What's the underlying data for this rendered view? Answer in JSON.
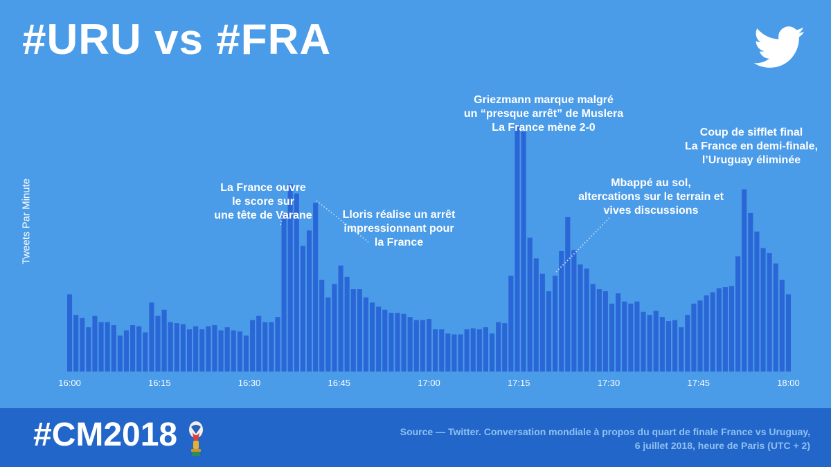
{
  "header": {
    "title": "#URU vs #FRA",
    "logo_icon": "twitter-bird-icon"
  },
  "footer": {
    "hashtag": "#CM2018",
    "emblem_icon": "world-cup-trophy-icon",
    "source_line1": "Source — Twitter. Conversation mondiale à propos du quart de finale France vs Uruguay,",
    "source_line2": "6 juillet 2018, heure de Paris (UTC + 2)"
  },
  "colors": {
    "background": "#4a9be8",
    "bars": "#2b66d6",
    "footer": "#2366c9",
    "text": "#ffffff",
    "source_text": "#8ec1f2"
  },
  "annotations": [
    {
      "id": "varane",
      "lines": [
        "La France ouvre",
        "le score sur",
        "une tête de Varane"
      ]
    },
    {
      "id": "lloris",
      "lines": [
        "Lloris réalise un arrêt",
        "impressionnant pour",
        "la France"
      ]
    },
    {
      "id": "griezmann",
      "lines": [
        "Griezmann marque malgré",
        "un “presque arrêt” de Muslera",
        "La France mène 2-0"
      ]
    },
    {
      "id": "mbappe",
      "lines": [
        "Mbappé au sol,",
        "altercations sur le terrain et",
        "vives discussions"
      ]
    },
    {
      "id": "final",
      "lines": [
        "Coup de sifflet final",
        "La France en demi-finale,",
        "l’Uruguay éliminée"
      ]
    }
  ],
  "chart_data": {
    "type": "bar",
    "ylabel": "Tweets Par Minute",
    "xlabel": "",
    "x_start": "16:00",
    "x_end": "18:00",
    "x_ticks": [
      "16:00",
      "16:15",
      "16:30",
      "16:45",
      "17:00",
      "17:15",
      "17:30",
      "17:45",
      "18:00"
    ],
    "y_axis_labels": false,
    "grid": false,
    "values": [
      75,
      55,
      52,
      43,
      54,
      48,
      48,
      45,
      35,
      40,
      45,
      44,
      38,
      67,
      54,
      60,
      48,
      47,
      46,
      41,
      44,
      41,
      44,
      45,
      40,
      43,
      40,
      39,
      35,
      50,
      54,
      48,
      48,
      53,
      154,
      182,
      173,
      122,
      137,
      164,
      89,
      72,
      85,
      103,
      92,
      80,
      80,
      72,
      67,
      63,
      60,
      57,
      57,
      56,
      53,
      50,
      50,
      51,
      41,
      41,
      37,
      36,
      36,
      41,
      42,
      41,
      43,
      37,
      48,
      47,
      93,
      240,
      233,
      130,
      110,
      95,
      78,
      93,
      117,
      150,
      118,
      104,
      100,
      85,
      80,
      78,
      66,
      76,
      68,
      66,
      68,
      58,
      55,
      59,
      53,
      49,
      50,
      43,
      55,
      66,
      69,
      74,
      77,
      81,
      82,
      83,
      112,
      177,
      154,
      136,
      120,
      115,
      105,
      89,
      75
    ]
  }
}
